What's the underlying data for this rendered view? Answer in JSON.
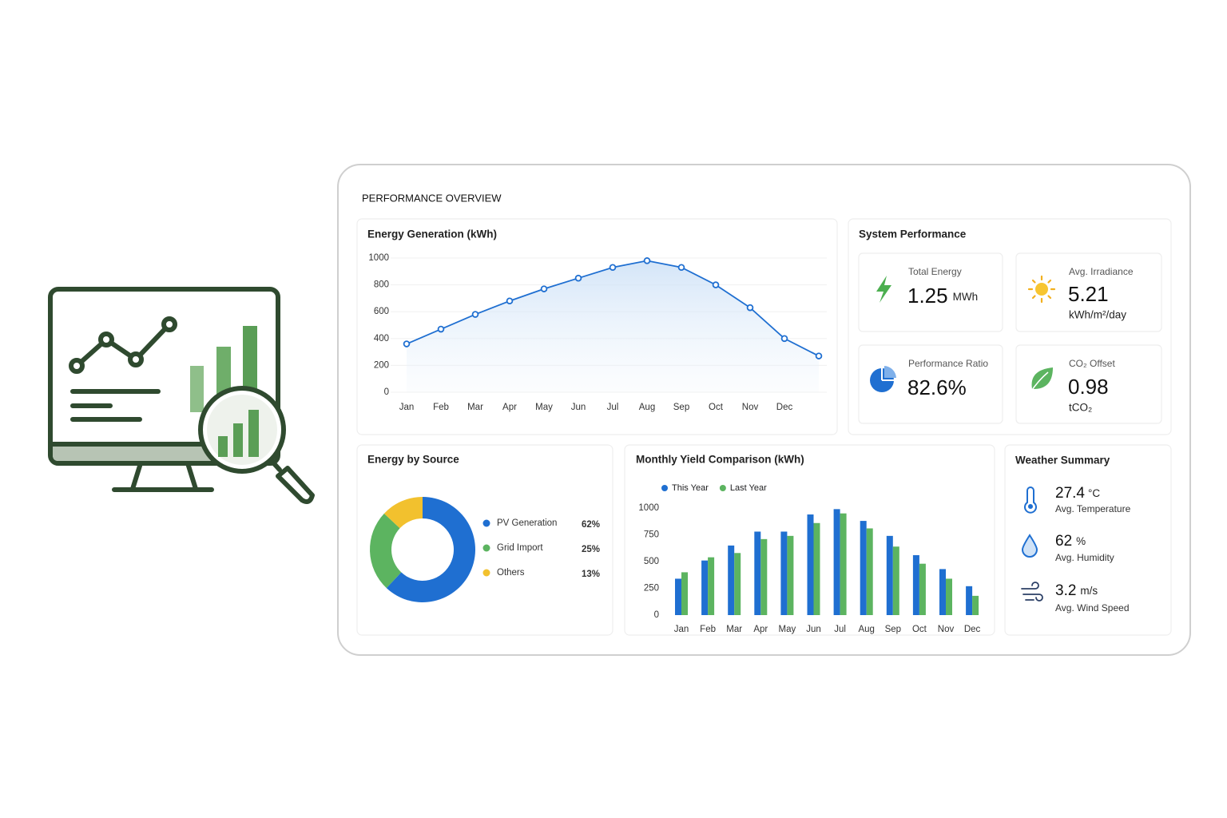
{
  "title": "PERFORMANCE OVERVIEW",
  "chart_data": [
    {
      "type": "line",
      "title": "Energy Generation (kWh)",
      "categories": [
        "Jan",
        "Feb",
        "Mar",
        "Apr",
        "May",
        "Jun",
        "Jul",
        "Aug",
        "Sep",
        "Oct",
        "Nov",
        "Dec",
        null
      ],
      "values": [
        360,
        470,
        580,
        680,
        770,
        850,
        930,
        980,
        930,
        800,
        630,
        400,
        270
      ],
      "color": "#1f6fd1",
      "ylim": [
        0,
        1000
      ],
      "yticks": [
        0,
        200,
        400,
        600,
        800,
        1000
      ],
      "grid": true
    },
    {
      "type": "donut",
      "title": "Energy by Source",
      "categories": [
        "PV Generation",
        "Grid Import",
        "Others"
      ],
      "values": [
        62,
        25,
        13
      ],
      "value_labels": [
        "62%",
        "25%",
        "13%"
      ],
      "colors": [
        "#1f6fd1",
        "#5cb460",
        "#f2c12e"
      ]
    },
    {
      "type": "bar",
      "title": "Monthly Yield Comparison (kWh)",
      "categories": [
        "Jan",
        "Feb",
        "Mar",
        "Apr",
        "May",
        "Jun",
        "Jul",
        "Aug",
        "Sep",
        "Oct",
        "Nov",
        "Dec"
      ],
      "series": [
        {
          "name": "This Year",
          "color": "#1f6fd1",
          "values": [
            340,
            510,
            650,
            780,
            780,
            940,
            990,
            880,
            740,
            560,
            430,
            270
          ]
        },
        {
          "name": "Last Year",
          "color": "#5cb460",
          "values": [
            400,
            540,
            580,
            710,
            740,
            860,
            950,
            810,
            640,
            480,
            340,
            180
          ]
        }
      ],
      "ylim": [
        0,
        1000
      ],
      "yticks": [
        0,
        250,
        500,
        750,
        1000
      ],
      "grid": false
    }
  ],
  "system_performance": {
    "title": "System Performance",
    "cards": [
      {
        "label": "Total Energy",
        "value": "1.25",
        "unit": "MWh"
      },
      {
        "label": "Avg. Irradiance",
        "value": "5.21",
        "unit": "kWh/m²/day"
      },
      {
        "label": "Performance Ratio",
        "value": "82.6%"
      },
      {
        "label": "CO₂ Offset",
        "value": "0.98",
        "unit": "tCO₂"
      }
    ]
  },
  "weather_summary": {
    "title": "Weather Summary",
    "items": [
      {
        "value": "27.4",
        "unit": "°C",
        "label": "Avg. Temperature"
      },
      {
        "value": "62",
        "unit": "%",
        "label": "Avg. Humidity"
      },
      {
        "value": "3.2",
        "unit": "m/s",
        "label": "Avg. Wind Speed"
      }
    ]
  }
}
